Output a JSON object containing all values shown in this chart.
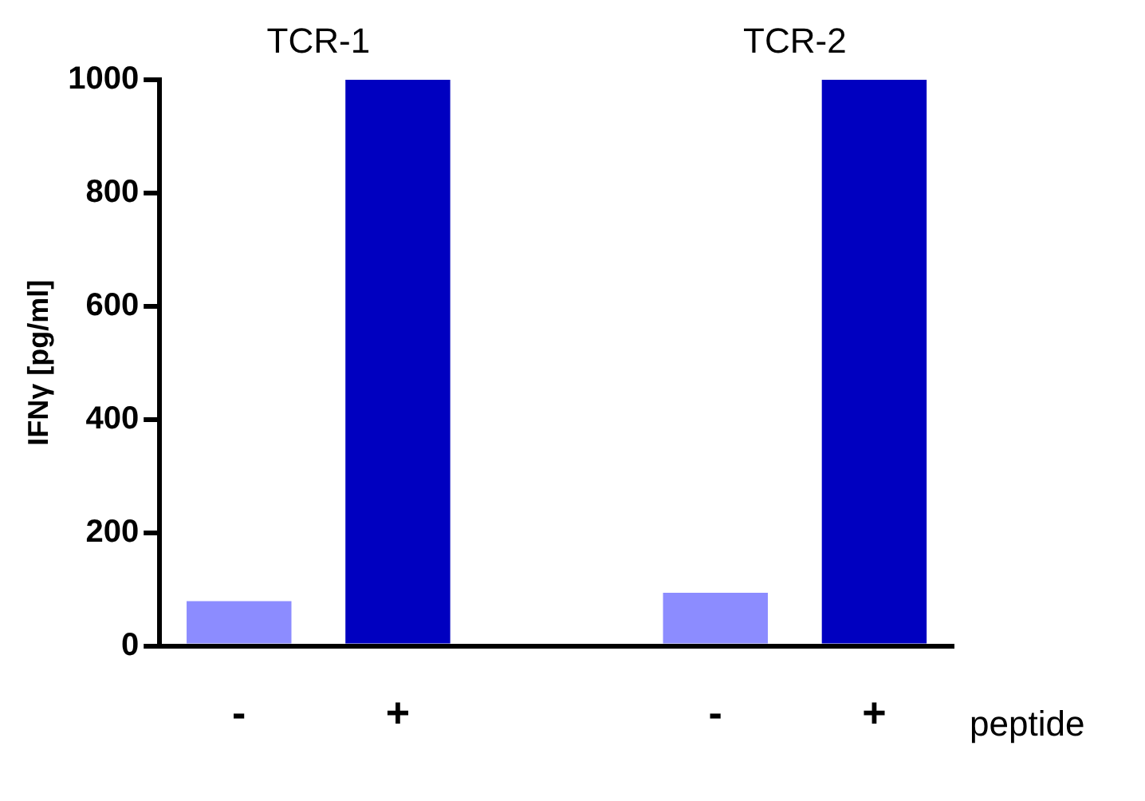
{
  "chart_data": {
    "type": "bar",
    "categories": [
      "-",
      "+",
      null,
      "-",
      "+"
    ],
    "values": [
      79,
      1000,
      null,
      94,
      1000
    ],
    "colors": [
      "#8c8cff",
      "#0000c0",
      "#000000",
      "#8c8cff",
      "#0000c0"
    ],
    "ylabel": "IFNγ [pg/ml]",
    "xlabel": "peptide",
    "annotations": [
      "TCR-1",
      "TCR-2"
    ],
    "ylim": [
      0,
      1000
    ],
    "yticks": [
      0,
      200,
      400,
      600,
      800,
      1000
    ],
    "grid": false,
    "legend": false
  }
}
